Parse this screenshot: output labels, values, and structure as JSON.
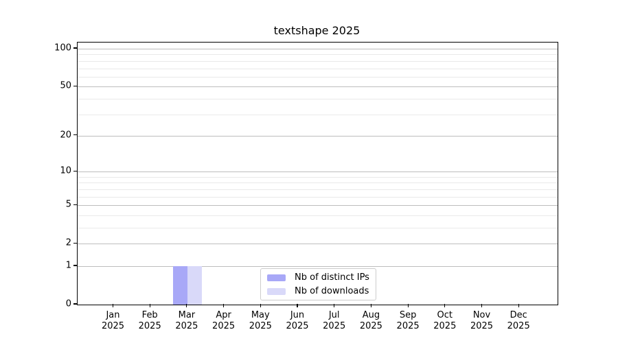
{
  "colors": {
    "background": "#ffffff",
    "axis": "#000000",
    "major_gridline": "#bdbdbd",
    "minor_gridline": "#e9e9e9",
    "legend_border": "#cccccc",
    "distinct_ips_bar": "#a8a8f7",
    "downloads_bar": "#d9d9f9"
  },
  "chart_data": {
    "type": "bar",
    "title": "textshape 2025",
    "xlabel": "",
    "ylabel": "",
    "categories": [
      "Jan 2025",
      "Feb 2025",
      "Mar 2025",
      "Apr 2025",
      "May 2025",
      "Jun 2025",
      "Jul 2025",
      "Aug 2025",
      "Sep 2025",
      "Oct 2025",
      "Nov 2025",
      "Dec 2025"
    ],
    "series": [
      {
        "name": "Nb of distinct IPs",
        "color": "#a8a8f7",
        "values": [
          0,
          0,
          1,
          0,
          0,
          0,
          0,
          0,
          0,
          0,
          0,
          0
        ]
      },
      {
        "name": "Nb of downloads",
        "color": "#d9d9f9",
        "values": [
          0,
          0,
          1,
          0,
          0,
          0,
          0,
          0,
          0,
          0,
          0,
          0
        ]
      }
    ],
    "y_scale": "log1p",
    "ylim": [
      0,
      112
    ],
    "y_major_ticks": [
      0,
      1,
      2,
      5,
      10,
      20,
      50,
      100
    ],
    "y_minor_gridlines": [
      3,
      4,
      6,
      7,
      8,
      9,
      30,
      40,
      60,
      70,
      80,
      90
    ],
    "grid": true,
    "legend_position": "lower-center-inside"
  }
}
